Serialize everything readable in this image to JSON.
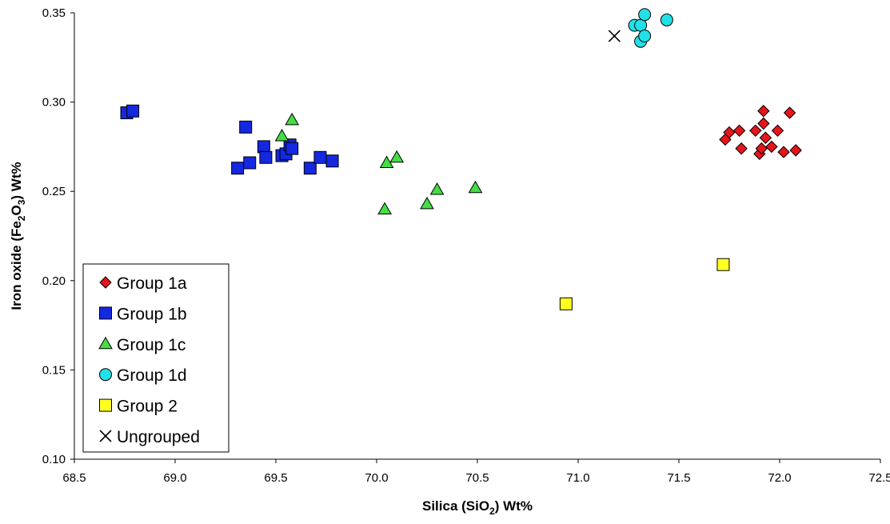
{
  "chart_data": {
    "type": "scatter",
    "title": "",
    "xlabel": {
      "pre": "Silica (SiO",
      "sub": "2",
      "post": ") Wt%"
    },
    "ylabel": {
      "pre": "Iron oxide (Fe",
      "sub1": "2",
      "mid": "O",
      "sub2": "3",
      "post": ") Wt%"
    },
    "xlim": [
      68.5,
      72.5
    ],
    "ylim": [
      0.1,
      0.35
    ],
    "xticks": [
      "68.5",
      "69.0",
      "69.5",
      "70.0",
      "70.5",
      "71.0",
      "71.5",
      "72.0",
      "72.5"
    ],
    "yticks": [
      "0.10",
      "0.15",
      "0.20",
      "0.25",
      "0.30",
      "0.35"
    ],
    "grid": false,
    "legend_position": "bottom-left",
    "series": [
      {
        "name": "Group 1a",
        "marker": "diamond",
        "color": "#e8141c",
        "points": [
          [
            71.73,
            0.279
          ],
          [
            71.75,
            0.283
          ],
          [
            71.8,
            0.284
          ],
          [
            71.81,
            0.274
          ],
          [
            71.88,
            0.284
          ],
          [
            71.9,
            0.271
          ],
          [
            71.91,
            0.274
          ],
          [
            71.92,
            0.295
          ],
          [
            71.92,
            0.288
          ],
          [
            71.93,
            0.28
          ],
          [
            71.96,
            0.275
          ],
          [
            71.99,
            0.284
          ],
          [
            72.02,
            0.272
          ],
          [
            72.05,
            0.294
          ],
          [
            72.08,
            0.273
          ]
        ]
      },
      {
        "name": "Group 1b",
        "marker": "square",
        "color": "#1428e0",
        "points": [
          [
            68.76,
            0.294
          ],
          [
            68.79,
            0.295
          ],
          [
            69.31,
            0.263
          ],
          [
            69.35,
            0.286
          ],
          [
            69.37,
            0.266
          ],
          [
            69.44,
            0.275
          ],
          [
            69.45,
            0.269
          ],
          [
            69.53,
            0.27
          ],
          [
            69.55,
            0.271
          ],
          [
            69.57,
            0.276
          ],
          [
            69.58,
            0.274
          ],
          [
            69.67,
            0.263
          ],
          [
            69.72,
            0.269
          ],
          [
            69.78,
            0.267
          ]
        ]
      },
      {
        "name": "Group 1c",
        "marker": "triangle",
        "color": "#44dd44",
        "points": [
          [
            69.53,
            0.281
          ],
          [
            69.58,
            0.29
          ],
          [
            70.04,
            0.24
          ],
          [
            70.05,
            0.266
          ],
          [
            70.1,
            0.269
          ],
          [
            70.25,
            0.243
          ],
          [
            70.3,
            0.251
          ],
          [
            70.49,
            0.252
          ]
        ]
      },
      {
        "name": "Group 1d",
        "marker": "circle",
        "color": "#22e0e8",
        "points": [
          [
            71.28,
            0.343
          ],
          [
            71.31,
            0.343
          ],
          [
            71.31,
            0.334
          ],
          [
            71.33,
            0.349
          ],
          [
            71.33,
            0.337
          ],
          [
            71.44,
            0.346
          ]
        ]
      },
      {
        "name": "Group 2",
        "marker": "square",
        "color": "#ffff22",
        "points": [
          [
            70.94,
            0.187
          ],
          [
            71.72,
            0.209
          ]
        ]
      },
      {
        "name": "Ungrouped",
        "marker": "x",
        "color": "#000000",
        "points": [
          [
            71.18,
            0.337
          ]
        ]
      }
    ]
  }
}
